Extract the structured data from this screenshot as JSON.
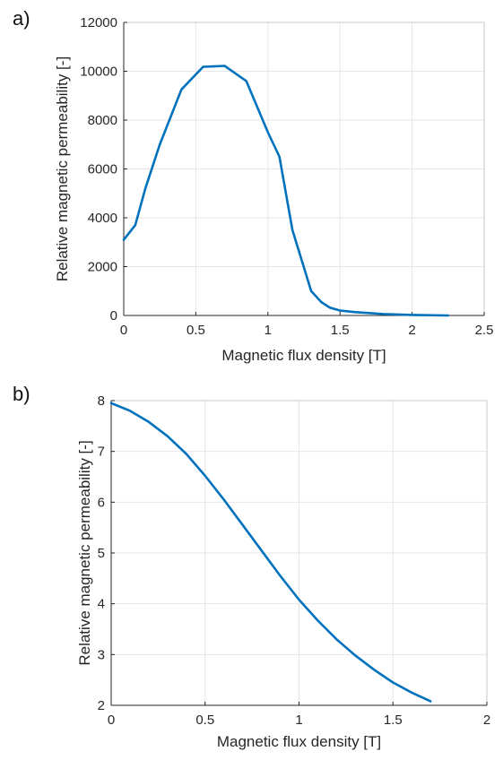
{
  "chart_data": [
    {
      "type": "line",
      "panel_label": "a)",
      "xlabel": "Magnetic flux density [T]",
      "ylabel": "Relative magnetic permeability [-]",
      "xlim": [
        0,
        2.5
      ],
      "ylim": [
        0,
        12000
      ],
      "xticks": [
        0,
        0.5,
        1,
        1.5,
        2,
        2.5
      ],
      "xtick_labels": [
        "0",
        "0.5",
        "1",
        "1.5",
        "2",
        "2.5"
      ],
      "yticks": [
        0,
        2000,
        4000,
        6000,
        8000,
        10000,
        12000
      ],
      "ytick_labels": [
        "0",
        "2000",
        "4000",
        "6000",
        "8000",
        "10000",
        "12000"
      ],
      "grid": true,
      "color": "#0072BD",
      "series": [
        {
          "x": [
            0,
            0.08,
            0.15,
            0.25,
            0.4,
            0.55,
            0.7,
            0.85,
            1.0,
            1.08,
            1.17,
            1.3,
            1.37,
            1.43,
            1.5,
            1.6,
            1.8,
            2.0,
            2.25
          ],
          "y": [
            3100,
            3700,
            5200,
            7000,
            9250,
            10180,
            10220,
            9600,
            7500,
            6500,
            3500,
            1000,
            550,
            320,
            200,
            140,
            60,
            20,
            0
          ]
        }
      ]
    },
    {
      "type": "line",
      "panel_label": "b)",
      "xlabel": "Magnetic flux density [T]",
      "ylabel": "Relative magnetic permeability [-]",
      "xlim": [
        0,
        2
      ],
      "ylim": [
        2,
        8
      ],
      "xticks": [
        0,
        0.5,
        1,
        1.5,
        2
      ],
      "xtick_labels": [
        "0",
        "0.5",
        "1",
        "1.5",
        "2"
      ],
      "yticks": [
        2,
        3,
        4,
        5,
        6,
        7,
        8
      ],
      "ytick_labels": [
        "2",
        "3",
        "4",
        "5",
        "6",
        "7",
        "8"
      ],
      "grid": true,
      "color": "#0072BD",
      "series": [
        {
          "x": [
            0,
            0.1,
            0.2,
            0.3,
            0.4,
            0.5,
            0.6,
            0.7,
            0.8,
            0.9,
            1.0,
            1.1,
            1.2,
            1.3,
            1.4,
            1.5,
            1.6,
            1.7
          ],
          "y": [
            7.95,
            7.8,
            7.58,
            7.3,
            6.95,
            6.52,
            6.05,
            5.55,
            5.05,
            4.55,
            4.08,
            3.67,
            3.3,
            2.98,
            2.7,
            2.45,
            2.25,
            2.08
          ]
        }
      ]
    }
  ]
}
